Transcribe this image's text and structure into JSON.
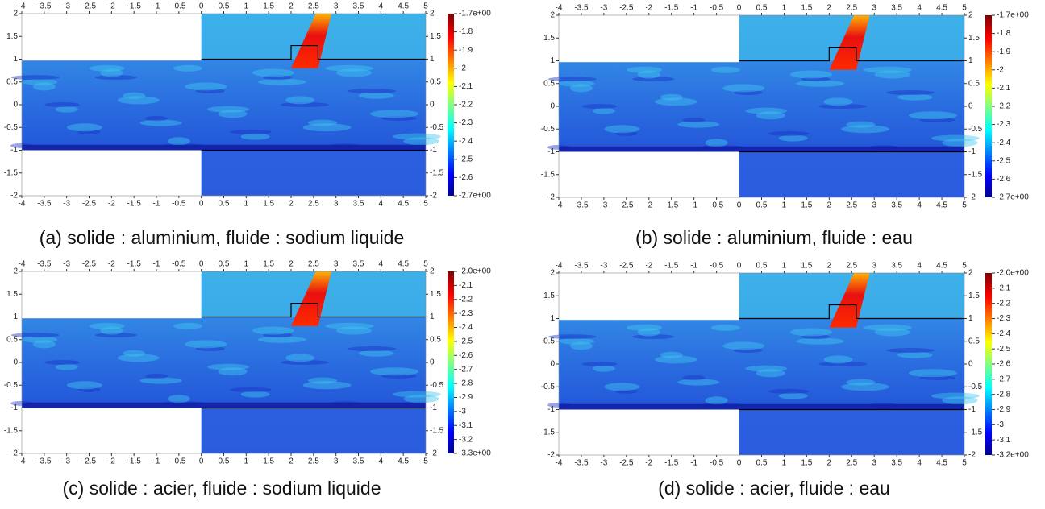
{
  "chart_data": [
    {
      "type": "heatmap",
      "caption": "(a) solide : aluminium, fluide : sodium liquide",
      "xlim": [
        -4,
        5
      ],
      "xticks": [
        -4,
        -3.5,
        -3,
        -2.5,
        -2,
        -1.5,
        -1,
        -0.5,
        0,
        0.5,
        1,
        1.5,
        2,
        2.5,
        3,
        3.5,
        4,
        4.5,
        5
      ],
      "ylim": [
        -2,
        2
      ],
      "yticks": [
        -2,
        -1.5,
        -1,
        -0.5,
        0,
        0.5,
        1,
        1.5,
        2
      ],
      "clim": [
        -2.7,
        -1.7
      ],
      "cticks": [
        {
          "value": -1.7,
          "label": "-1.7e+00"
        },
        -1.8,
        -1.9,
        -2,
        -2.1,
        -2.2,
        -2.3,
        -2.4,
        -2.5,
        -2.6,
        {
          "value": -2.7,
          "label": "-2.7e+00"
        }
      ]
    },
    {
      "type": "heatmap",
      "caption": "(b) solide : aluminium, fluide : eau",
      "xlim": [
        -4,
        5
      ],
      "xticks": [
        -4,
        -3.5,
        -3,
        -2.5,
        -2,
        -1.5,
        -1,
        -0.5,
        0,
        0.5,
        1,
        1.5,
        2,
        2.5,
        3,
        3.5,
        4,
        4.5,
        5
      ],
      "ylim": [
        -2,
        2
      ],
      "yticks": [
        -2,
        -1.5,
        -1,
        -0.5,
        0,
        0.5,
        1,
        1.5,
        2
      ],
      "clim": [
        -2.7,
        -1.7
      ],
      "cticks": [
        {
          "value": -1.7,
          "label": "-1.7e+00"
        },
        -1.8,
        -1.9,
        -2,
        -2.1,
        -2.2,
        -2.3,
        -2.4,
        -2.5,
        -2.6,
        {
          "value": -2.7,
          "label": "-2.7e+00"
        }
      ]
    },
    {
      "type": "heatmap",
      "caption": "(c) solide : acier, fluide : sodium liquide",
      "xlim": [
        -4,
        5
      ],
      "xticks": [
        -4,
        -3.5,
        -3,
        -2.5,
        -2,
        -1.5,
        -1,
        -0.5,
        0,
        0.5,
        1,
        1.5,
        2,
        2.5,
        3,
        3.5,
        4,
        4.5,
        5
      ],
      "ylim": [
        -2,
        2
      ],
      "yticks": [
        -2,
        -1.5,
        -1,
        -0.5,
        0,
        0.5,
        1,
        1.5,
        2
      ],
      "clim": [
        -3.3,
        -2.0
      ],
      "cticks": [
        {
          "value": -2.0,
          "label": "-2.0e+00"
        },
        -2.1,
        -2.2,
        -2.3,
        -2.4,
        -2.5,
        -2.6,
        -2.7,
        -2.8,
        -2.9,
        -3,
        -3.1,
        -3.2,
        {
          "value": -3.3,
          "label": "-3.3e+00"
        }
      ]
    },
    {
      "type": "heatmap",
      "caption": "(d) solide : acier, fluide : eau",
      "xlim": [
        -4,
        5
      ],
      "xticks": [
        -4,
        -3.5,
        -3,
        -2.5,
        -2,
        -1.5,
        -1,
        -0.5,
        0,
        0.5,
        1,
        1.5,
        2,
        2.5,
        3,
        3.5,
        4,
        4.5,
        5
      ],
      "ylim": [
        -2,
        2
      ],
      "yticks": [
        -2,
        -1.5,
        -1,
        -0.5,
        0,
        0.5,
        1,
        1.5,
        2
      ],
      "clim": [
        -3.2,
        -2.0
      ],
      "cticks": [
        {
          "value": -2.0,
          "label": "-2.0e+00"
        },
        -2.1,
        -2.2,
        -2.3,
        -2.4,
        -2.5,
        -2.6,
        -2.7,
        -2.8,
        -2.9,
        -3,
        -3.1,
        {
          "value": -3.2,
          "label": "-3.2e+00"
        }
      ]
    }
  ]
}
